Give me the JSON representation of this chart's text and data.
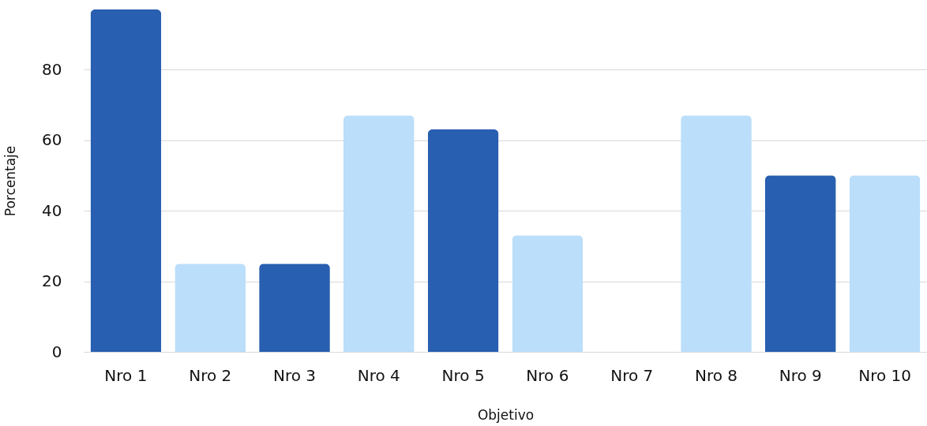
{
  "chart_data": {
    "type": "bar",
    "xlabel": "Objetivo",
    "ylabel": "Porcentaje",
    "categories": [
      "Nro 1",
      "Nro 2",
      "Nro 3",
      "Nro 4",
      "Nro 5",
      "Nro 6",
      "Nro 7",
      "Nro 8",
      "Nro 9",
      "Nro 10"
    ],
    "values": [
      97,
      25,
      25,
      67,
      63,
      33,
      0,
      67,
      50,
      50
    ],
    "colors": [
      "#285fb0",
      "#bbdefa",
      "#285fb0",
      "#bbdefa",
      "#285fb0",
      "#bbdefa",
      "#285fb0",
      "#bbdefa",
      "#285fb0",
      "#bbdefa"
    ],
    "ylim": [
      0,
      97
    ],
    "yticks": [
      0,
      20,
      40,
      60,
      80
    ],
    "grid": "y"
  }
}
